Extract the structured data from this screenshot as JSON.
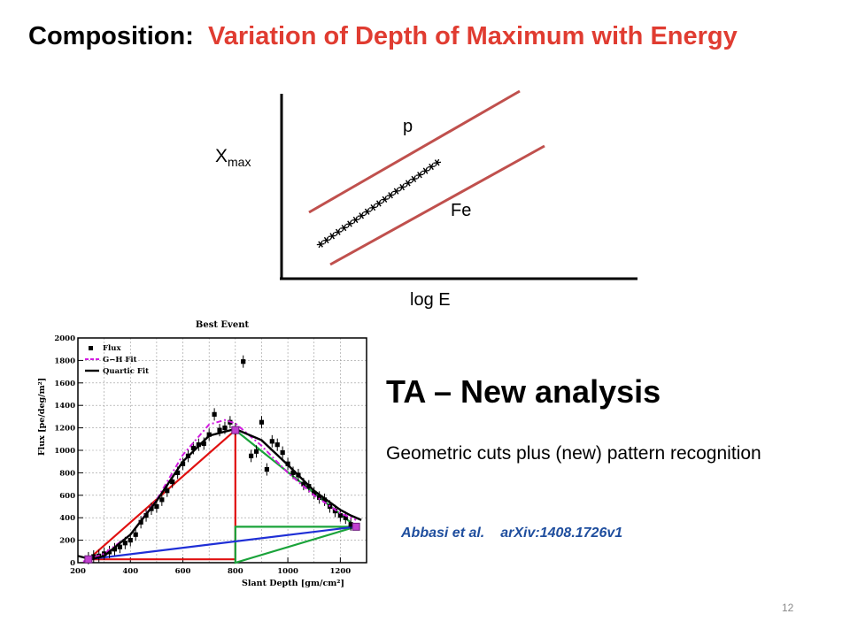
{
  "slide": {
    "title_lead": "Composition:",
    "title_rest": "Variation of Depth of Maximum with Energy",
    "page_number": "12"
  },
  "sketch": {
    "y_label": "X",
    "y_label_sub": "max",
    "x_label": "log E",
    "label_p": "p",
    "label_fe": "Fe",
    "stars": "*********************"
  },
  "ta": {
    "heading": "TA – New analysis",
    "body": "Geometric cuts plus (new) pattern recognition",
    "cite_author": "Abbasi et al.",
    "cite_arxiv": "arXiv:1408.1726v1"
  },
  "chart_data": {
    "type": "scatter",
    "title": "Best Event",
    "xlabel": "Slant Depth  [gm/cm²]",
    "ylabel": "Flux  [pe/deg/m²]",
    "xlim": [
      200,
      1300
    ],
    "ylim": [
      0,
      2000
    ],
    "x_ticks": [
      200,
      400,
      600,
      800,
      1000,
      1200
    ],
    "y_ticks": [
      0,
      200,
      400,
      600,
      800,
      1000,
      1200,
      1400,
      1600,
      1800,
      2000
    ],
    "grid": true,
    "legend_position": "top-left",
    "legend": [
      "Flux",
      "G−H Fit",
      "Quartic Fit"
    ],
    "flux_points": {
      "x": [
        240,
        260,
        280,
        300,
        320,
        340,
        360,
        380,
        400,
        420,
        440,
        460,
        480,
        500,
        520,
        540,
        560,
        580,
        600,
        620,
        640,
        660,
        680,
        700,
        720,
        740,
        760,
        780,
        800,
        830,
        860,
        880,
        900,
        920,
        940,
        960,
        980,
        1000,
        1020,
        1040,
        1060,
        1080,
        1100,
        1120,
        1140,
        1160,
        1180,
        1200,
        1220,
        1240
      ],
      "y": [
        40,
        55,
        60,
        80,
        95,
        120,
        140,
        175,
        200,
        250,
        360,
        420,
        480,
        500,
        560,
        640,
        720,
        800,
        880,
        950,
        1020,
        1050,
        1060,
        1140,
        1320,
        1180,
        1200,
        1250,
        1190,
        1790,
        950,
        990,
        1250,
        830,
        1080,
        1050,
        980,
        880,
        800,
        780,
        700,
        680,
        620,
        580,
        560,
        500,
        460,
        420,
        400,
        340
      ]
    },
    "gh_fit": {
      "x": [
        220,
        300,
        400,
        500,
        600,
        700,
        760,
        800,
        900,
        1000,
        1100,
        1200,
        1260
      ],
      "y": [
        10,
        80,
        250,
        560,
        960,
        1230,
        1270,
        1240,
        1040,
        800,
        600,
        440,
        380
      ]
    },
    "quartic_fit": {
      "x": [
        200,
        250,
        300,
        400,
        500,
        600,
        700,
        800,
        900,
        1000,
        1100,
        1200,
        1240,
        1280
      ],
      "y": [
        60,
        30,
        60,
        250,
        550,
        900,
        1130,
        1190,
        1090,
        870,
        640,
        470,
        420,
        380
      ]
    },
    "geometric_overlay": {
      "red": {
        "x": [
          240,
          800,
          800,
          240
        ],
        "y": [
          30,
          1180,
          30,
          30
        ]
      },
      "green": {
        "x": [
          800,
          1260,
          800,
          800,
          1260
        ],
        "y": [
          1180,
          320,
          320,
          0,
          320
        ]
      },
      "blue": {
        "x": [
          240,
          1260
        ],
        "y": [
          30,
          320
        ]
      },
      "markers": {
        "x": [
          240,
          800,
          1260
        ],
        "y": [
          30,
          1180,
          320
        ]
      }
    }
  }
}
